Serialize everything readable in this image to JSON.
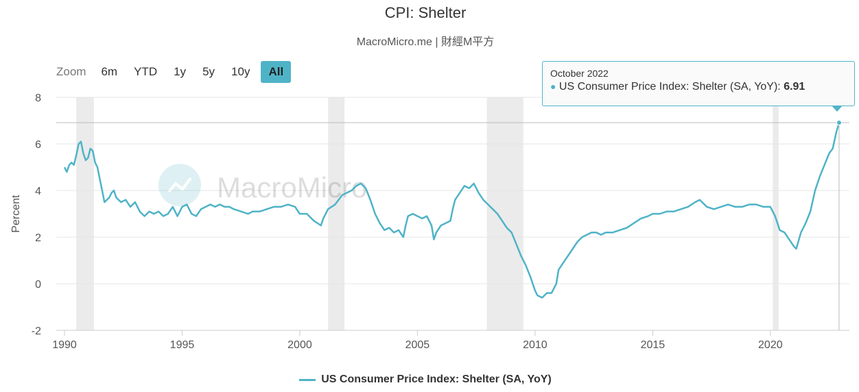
{
  "chart_data": {
    "type": "line",
    "title": "CPI: Shelter",
    "subtitle": "MacroMicro.me | 財經M平方",
    "ylabel": "Percent",
    "xlabel": "",
    "ylim": [
      -2,
      8
    ],
    "yticks": [
      "8",
      "6",
      "4",
      "2",
      "0",
      "-2"
    ],
    "xlim": [
      1990,
      2022.95
    ],
    "xticks": [
      "1990",
      "1995",
      "2000",
      "2005",
      "2010",
      "2015",
      "2020"
    ],
    "grid": true,
    "legend_position": "bottom-center",
    "watermark": "MacroMicro",
    "recessions": [
      [
        1990.5,
        1991.25
      ],
      [
        2001.2,
        2001.9
      ],
      [
        2007.95,
        2009.5
      ],
      [
        2020.1,
        2020.35
      ]
    ],
    "series": [
      {
        "name": "US Consumer Price Index: Shelter (SA, YoY)",
        "color": "#4fb3c7",
        "points": [
          [
            1990.0,
            5.0
          ],
          [
            1990.1,
            4.8
          ],
          [
            1990.2,
            5.1
          ],
          [
            1990.3,
            5.2
          ],
          [
            1990.4,
            5.1
          ],
          [
            1990.5,
            5.5
          ],
          [
            1990.6,
            6.0
          ],
          [
            1990.7,
            6.1
          ],
          [
            1990.8,
            5.6
          ],
          [
            1990.9,
            5.3
          ],
          [
            1991.0,
            5.4
          ],
          [
            1991.1,
            5.8
          ],
          [
            1991.2,
            5.7
          ],
          [
            1991.3,
            5.2
          ],
          [
            1991.4,
            5.0
          ],
          [
            1991.5,
            4.5
          ],
          [
            1991.6,
            4.0
          ],
          [
            1991.7,
            3.5
          ],
          [
            1991.9,
            3.7
          ],
          [
            1992.0,
            3.9
          ],
          [
            1992.1,
            4.0
          ],
          [
            1992.2,
            3.7
          ],
          [
            1992.4,
            3.5
          ],
          [
            1992.6,
            3.6
          ],
          [
            1992.8,
            3.3
          ],
          [
            1993.0,
            3.5
          ],
          [
            1993.2,
            3.1
          ],
          [
            1993.4,
            2.9
          ],
          [
            1993.6,
            3.1
          ],
          [
            1993.8,
            3.0
          ],
          [
            1994.0,
            3.1
          ],
          [
            1994.2,
            2.9
          ],
          [
            1994.4,
            3.0
          ],
          [
            1994.6,
            3.3
          ],
          [
            1994.8,
            2.9
          ],
          [
            1995.0,
            3.3
          ],
          [
            1995.2,
            3.4
          ],
          [
            1995.4,
            3.0
          ],
          [
            1995.6,
            2.9
          ],
          [
            1995.8,
            3.2
          ],
          [
            1996.0,
            3.3
          ],
          [
            1996.2,
            3.4
          ],
          [
            1996.4,
            3.3
          ],
          [
            1996.6,
            3.4
          ],
          [
            1996.8,
            3.3
          ],
          [
            1997.0,
            3.3
          ],
          [
            1997.2,
            3.2
          ],
          [
            1997.5,
            3.1
          ],
          [
            1997.8,
            3.0
          ],
          [
            1998.0,
            3.1
          ],
          [
            1998.3,
            3.1
          ],
          [
            1998.6,
            3.2
          ],
          [
            1998.9,
            3.3
          ],
          [
            1999.2,
            3.3
          ],
          [
            1999.5,
            3.4
          ],
          [
            1999.8,
            3.3
          ],
          [
            2000.0,
            3.0
          ],
          [
            2000.3,
            3.0
          ],
          [
            2000.6,
            2.7
          ],
          [
            2000.9,
            2.5
          ],
          [
            2001.0,
            2.8
          ],
          [
            2001.2,
            3.2
          ],
          [
            2001.5,
            3.4
          ],
          [
            2001.8,
            3.8
          ],
          [
            2002.0,
            3.9
          ],
          [
            2002.2,
            4.0
          ],
          [
            2002.4,
            4.2
          ],
          [
            2002.6,
            4.3
          ],
          [
            2002.8,
            4.1
          ],
          [
            2003.0,
            3.6
          ],
          [
            2003.2,
            3.0
          ],
          [
            2003.4,
            2.6
          ],
          [
            2003.6,
            2.3
          ],
          [
            2003.8,
            2.4
          ],
          [
            2004.0,
            2.2
          ],
          [
            2004.2,
            2.3
          ],
          [
            2004.4,
            2.0
          ],
          [
            2004.5,
            2.5
          ],
          [
            2004.6,
            2.9
          ],
          [
            2004.8,
            3.0
          ],
          [
            2005.0,
            2.9
          ],
          [
            2005.2,
            2.8
          ],
          [
            2005.4,
            2.9
          ],
          [
            2005.6,
            2.5
          ],
          [
            2005.7,
            1.9
          ],
          [
            2005.8,
            2.2
          ],
          [
            2006.0,
            2.5
          ],
          [
            2006.2,
            2.6
          ],
          [
            2006.4,
            2.7
          ],
          [
            2006.5,
            3.2
          ],
          [
            2006.6,
            3.6
          ],
          [
            2006.8,
            3.9
          ],
          [
            2007.0,
            4.2
          ],
          [
            2007.2,
            4.1
          ],
          [
            2007.4,
            4.3
          ],
          [
            2007.6,
            3.9
          ],
          [
            2007.8,
            3.6
          ],
          [
            2008.0,
            3.4
          ],
          [
            2008.2,
            3.2
          ],
          [
            2008.4,
            3.0
          ],
          [
            2008.6,
            2.7
          ],
          [
            2008.8,
            2.4
          ],
          [
            2009.0,
            2.2
          ],
          [
            2009.2,
            1.7
          ],
          [
            2009.4,
            1.2
          ],
          [
            2009.6,
            0.8
          ],
          [
            2009.8,
            0.3
          ],
          [
            2010.0,
            -0.3
          ],
          [
            2010.1,
            -0.5
          ],
          [
            2010.3,
            -0.6
          ],
          [
            2010.5,
            -0.4
          ],
          [
            2010.7,
            -0.4
          ],
          [
            2010.9,
            0.0
          ],
          [
            2011.0,
            0.6
          ],
          [
            2011.2,
            0.9
          ],
          [
            2011.4,
            1.2
          ],
          [
            2011.6,
            1.5
          ],
          [
            2011.8,
            1.8
          ],
          [
            2012.0,
            2.0
          ],
          [
            2012.2,
            2.1
          ],
          [
            2012.4,
            2.2
          ],
          [
            2012.6,
            2.2
          ],
          [
            2012.8,
            2.1
          ],
          [
            2013.0,
            2.2
          ],
          [
            2013.3,
            2.2
          ],
          [
            2013.6,
            2.3
          ],
          [
            2013.9,
            2.4
          ],
          [
            2014.2,
            2.6
          ],
          [
            2014.5,
            2.8
          ],
          [
            2014.8,
            2.9
          ],
          [
            2015.0,
            3.0
          ],
          [
            2015.3,
            3.0
          ],
          [
            2015.6,
            3.1
          ],
          [
            2015.9,
            3.1
          ],
          [
            2016.2,
            3.2
          ],
          [
            2016.5,
            3.3
          ],
          [
            2016.8,
            3.5
          ],
          [
            2017.0,
            3.6
          ],
          [
            2017.3,
            3.3
          ],
          [
            2017.6,
            3.2
          ],
          [
            2017.9,
            3.3
          ],
          [
            2018.2,
            3.4
          ],
          [
            2018.5,
            3.3
          ],
          [
            2018.8,
            3.3
          ],
          [
            2019.1,
            3.4
          ],
          [
            2019.4,
            3.4
          ],
          [
            2019.7,
            3.3
          ],
          [
            2020.0,
            3.3
          ],
          [
            2020.2,
            2.9
          ],
          [
            2020.4,
            2.3
          ],
          [
            2020.6,
            2.2
          ],
          [
            2020.8,
            1.9
          ],
          [
            2021.0,
            1.6
          ],
          [
            2021.1,
            1.5
          ],
          [
            2021.3,
            2.2
          ],
          [
            2021.5,
            2.6
          ],
          [
            2021.7,
            3.1
          ],
          [
            2021.9,
            4.0
          ],
          [
            2022.1,
            4.6
          ],
          [
            2022.3,
            5.1
          ],
          [
            2022.5,
            5.6
          ],
          [
            2022.65,
            5.8
          ],
          [
            2022.8,
            6.5
          ],
          [
            2022.92,
            6.91
          ]
        ]
      }
    ]
  },
  "zoom": {
    "label": "Zoom",
    "buttons": [
      "6m",
      "YTD",
      "1y",
      "5y",
      "10y",
      "All"
    ],
    "active": "All"
  },
  "tooltip": {
    "date": "October 2022",
    "series_label": "US Consumer Price Index: Shelter (SA, YoY):",
    "value": "6.91"
  },
  "legend": {
    "label": "US Consumer Price Index: Shelter (SA, YoY)"
  }
}
